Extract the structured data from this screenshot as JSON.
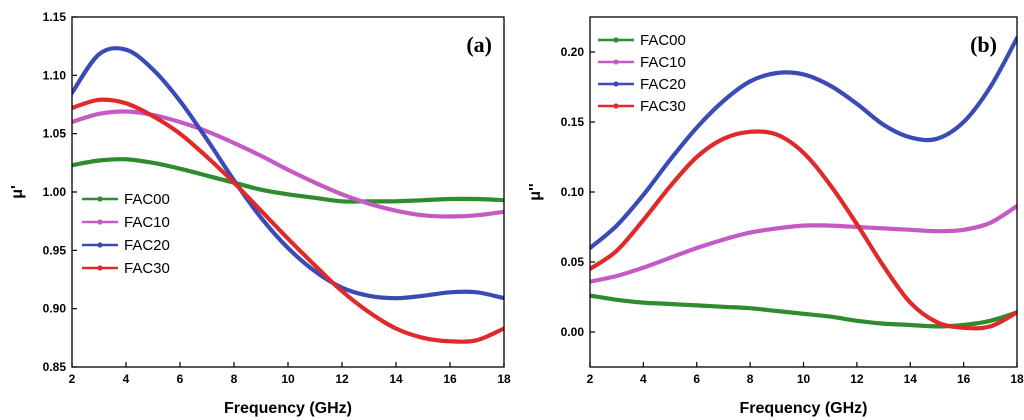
{
  "chart_data": [
    {
      "type": "line",
      "panel_label": "(a)",
      "xlabel": "Frequency (GHz)",
      "ylabel": "μ'",
      "xlim": [
        2,
        18
      ],
      "ylim": [
        0.85,
        1.15
      ],
      "xticks": [
        "2",
        "4",
        "6",
        "8",
        "10",
        "12",
        "14",
        "16",
        "18"
      ],
      "yticks": [
        "0.85",
        "0.90",
        "0.95",
        "1.00",
        "1.05",
        "1.10",
        "1.15"
      ],
      "legend_position": "center-left",
      "series": [
        {
          "name": "FAC00",
          "color": "#2e8b2e",
          "x": [
            2,
            3,
            4,
            5,
            6,
            7,
            8,
            9,
            10,
            11,
            12,
            13,
            14,
            15,
            16,
            17,
            18
          ],
          "y": [
            1.023,
            1.027,
            1.028,
            1.025,
            1.02,
            1.014,
            1.008,
            1.002,
            0.998,
            0.995,
            0.992,
            0.992,
            0.992,
            0.993,
            0.994,
            0.994,
            0.993
          ]
        },
        {
          "name": "FAC10",
          "color": "#c45ac4",
          "x": [
            2,
            3,
            4,
            5,
            6,
            7,
            8,
            9,
            10,
            11,
            12,
            13,
            14,
            15,
            16,
            17,
            18
          ],
          "y": [
            1.06,
            1.067,
            1.069,
            1.066,
            1.06,
            1.052,
            1.042,
            1.031,
            1.019,
            1.008,
            0.998,
            0.99,
            0.984,
            0.98,
            0.979,
            0.98,
            0.983
          ]
        },
        {
          "name": "FAC20",
          "color": "#3a4bb8",
          "x": [
            2,
            3,
            4,
            5,
            6,
            7,
            8,
            9,
            10,
            11,
            12,
            13,
            14,
            15,
            16,
            17,
            18
          ],
          "y": [
            1.085,
            1.118,
            1.122,
            1.105,
            1.078,
            1.045,
            1.01,
            0.978,
            0.952,
            0.932,
            0.918,
            0.911,
            0.909,
            0.911,
            0.914,
            0.914,
            0.909
          ]
        },
        {
          "name": "FAC30",
          "color": "#e02a2a",
          "x": [
            2,
            3,
            4,
            5,
            6,
            7,
            8,
            9,
            10,
            11,
            12,
            13,
            14,
            15,
            16,
            17,
            18
          ],
          "y": [
            1.072,
            1.079,
            1.076,
            1.065,
            1.05,
            1.03,
            1.008,
            0.984,
            0.96,
            0.937,
            0.915,
            0.897,
            0.883,
            0.875,
            0.872,
            0.873,
            0.883
          ]
        }
      ]
    },
    {
      "type": "line",
      "panel_label": "(b)",
      "xlabel": "Frequency (GHz)",
      "ylabel": "μ''",
      "xlim": [
        2,
        18
      ],
      "ylim": [
        -0.025,
        0.225
      ],
      "xticks": [
        "2",
        "4",
        "6",
        "8",
        "10",
        "12",
        "14",
        "16",
        "18"
      ],
      "yticks": [
        "0.00",
        "0.05",
        "0.10",
        "0.15",
        "0.20"
      ],
      "legend_position": "top-left",
      "series": [
        {
          "name": "FAC00",
          "color": "#2e8b2e",
          "x": [
            2,
            3,
            4,
            5,
            6,
            7,
            8,
            9,
            10,
            11,
            12,
            13,
            14,
            15,
            16,
            17,
            18
          ],
          "y": [
            0.026,
            0.023,
            0.021,
            0.02,
            0.019,
            0.018,
            0.017,
            0.015,
            0.013,
            0.011,
            0.008,
            0.006,
            0.005,
            0.004,
            0.005,
            0.008,
            0.014
          ]
        },
        {
          "name": "FAC10",
          "color": "#c45ac4",
          "x": [
            2,
            3,
            4,
            5,
            6,
            7,
            8,
            9,
            10,
            11,
            12,
            13,
            14,
            15,
            16,
            17,
            18
          ],
          "y": [
            0.036,
            0.04,
            0.046,
            0.053,
            0.06,
            0.066,
            0.071,
            0.074,
            0.076,
            0.076,
            0.075,
            0.074,
            0.073,
            0.072,
            0.073,
            0.078,
            0.09
          ]
        },
        {
          "name": "FAC20",
          "color": "#3a4bb8",
          "x": [
            2,
            3,
            4,
            5,
            6,
            7,
            8,
            9,
            10,
            11,
            12,
            13,
            14,
            15,
            16,
            17,
            18
          ],
          "y": [
            0.06,
            0.076,
            0.098,
            0.123,
            0.146,
            0.165,
            0.179,
            0.185,
            0.184,
            0.176,
            0.163,
            0.148,
            0.139,
            0.138,
            0.15,
            0.175,
            0.21
          ]
        },
        {
          "name": "FAC30",
          "color": "#e02a2a",
          "x": [
            2,
            3,
            4,
            5,
            6,
            7,
            8,
            9,
            10,
            11,
            12,
            13,
            14,
            15,
            16,
            17,
            18
          ],
          "y": [
            0.045,
            0.058,
            0.08,
            0.104,
            0.125,
            0.138,
            0.143,
            0.141,
            0.128,
            0.105,
            0.077,
            0.047,
            0.021,
            0.007,
            0.003,
            0.004,
            0.014
          ]
        }
      ]
    }
  ]
}
